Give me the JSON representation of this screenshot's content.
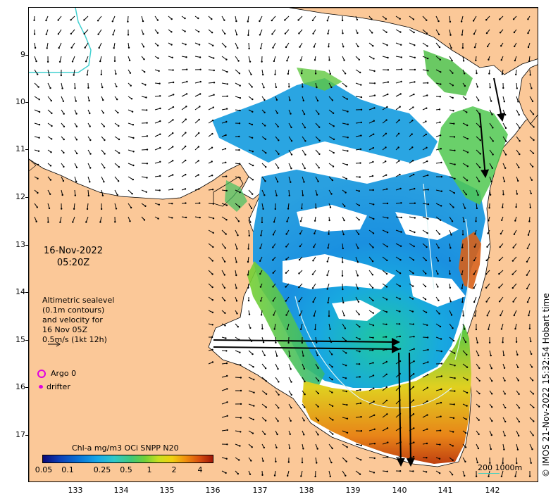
{
  "map": {
    "y_ticks": [
      "9",
      "10",
      "11",
      "12",
      "13",
      "14",
      "15",
      "16",
      "17"
    ],
    "x_ticks": [
      "133",
      "134",
      "135",
      "136",
      "137",
      "138",
      "139",
      "140",
      "141",
      "142"
    ],
    "colors": {
      "land": "#fbc898",
      "no_data": "#ffffff",
      "coast": "#000000",
      "contour": "#d8f0f0",
      "ship_track": "#40d0d0",
      "marker": "#e000e0"
    }
  },
  "date": {
    "line1": "16-Nov-2022",
    "line2": "05:20Z"
  },
  "legend": {
    "l1": "Altimetric sealevel",
    "l2": "(0.1m contours)",
    "l3": "and velocity for",
    "l4": "16 Nov 05Z",
    "l5": "0.5m/s (1kt 12h)",
    "argo": "Argo 0",
    "drifter": "drifter"
  },
  "colorbar": {
    "title": "Chl-a mg/m3 OCi SNPP N20",
    "ticks": [
      "0.05",
      "0.1",
      "0.25",
      "0.5",
      "1",
      "2",
      "4"
    ]
  },
  "scale": {
    "label": "200  1000m"
  },
  "credit": "© IMOS 21-Nov-2022 15:32:54 Hobart time"
}
